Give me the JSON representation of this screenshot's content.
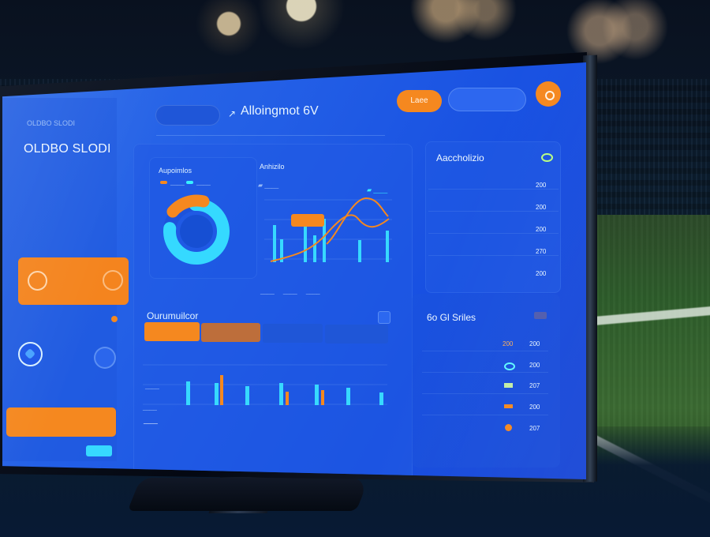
{
  "header": {
    "sidebar_title_small": "OLDBO SLODI",
    "sidebar_title": "OLDBO SLODI",
    "top_title": "Alloingmot 6V",
    "search_text": "",
    "top_button_small": "Laee",
    "top_button_blue": "",
    "profile_icon": "orange-circle-icon"
  },
  "sidebar": {
    "subtitle": "",
    "nav_1": "",
    "card_1_line_1": "",
    "card_1_line_2": "",
    "nav_2": "",
    "card_2_line_1": "",
    "card_2_line_2": "",
    "nav_3": "",
    "primary_button": "",
    "bottom_1": "",
    "bottom_2": ""
  },
  "main": {
    "filter_1": "",
    "filter_2": "",
    "filter_3": "",
    "left_chart_title": "Aupoimlos",
    "right_chart_title": "Anhizilo",
    "donut_text_1": "",
    "donut_text_2": "",
    "line_callout": "",
    "lower_title": "Ourumuilcor",
    "tab_1": "",
    "tab_2": "",
    "tab_3": "",
    "tab_4": ""
  },
  "right_panel": {
    "title_1": "Aaccholizio",
    "title_2": "6o Gl Sriles",
    "rows_1": [
      {
        "label": "",
        "value_1": "",
        "value_2": "200"
      },
      {
        "label": "",
        "value_1": "",
        "value_2": "200"
      },
      {
        "label": "",
        "value_1": "",
        "value_2": "200"
      },
      {
        "label": "",
        "value_1": "",
        "value_2": "270"
      },
      {
        "label": "",
        "value_1": "",
        "value_2": "200"
      }
    ],
    "rows_2": [
      {
        "label": "",
        "value_1": "200",
        "value_2": "200"
      },
      {
        "label": "",
        "value_1": "",
        "value_2": "200"
      },
      {
        "label": "",
        "value_1": "",
        "value_2": "207"
      },
      {
        "label": "",
        "value_1": "",
        "value_2": "200"
      },
      {
        "label": "",
        "value_1": "",
        "value_2": "207"
      }
    ]
  },
  "colors": {
    "screen_blue": "#235fe6",
    "orange": "#f5881f",
    "cyan": "#31e5ff",
    "field_green": "#2e5d2b"
  }
}
